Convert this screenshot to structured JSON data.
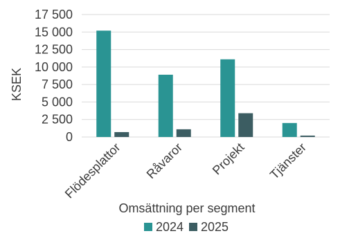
{
  "chart_data": {
    "type": "bar",
    "categories": [
      "Flödesplattor",
      "Råvaror",
      "Projekt",
      "Tjänster"
    ],
    "series": [
      {
        "name": "2024",
        "color": "#2a9493",
        "values": [
          15200,
          8900,
          11100,
          2000
        ]
      },
      {
        "name": "2025",
        "color": "#3c5d62",
        "values": [
          700,
          1100,
          3400,
          200
        ]
      }
    ],
    "title": "",
    "xlabel": "Omsättning per segment",
    "ylabel": "KSEK",
    "ylim": [
      0,
      17500
    ],
    "yticks": [
      {
        "value": 0,
        "label": "0"
      },
      {
        "value": 2500,
        "label": "2 500"
      },
      {
        "value": 5000,
        "label": "5 000"
      },
      {
        "value": 7500,
        "label": "7 500"
      },
      {
        "value": 10000,
        "label": "10 000"
      },
      {
        "value": 12500,
        "label": "12 500"
      },
      {
        "value": 15000,
        "label": "15 000"
      },
      {
        "value": 17500,
        "label": "17 500"
      }
    ],
    "grid": true,
    "grid_color": "#d9d9d9",
    "legend_position": "bottom"
  }
}
